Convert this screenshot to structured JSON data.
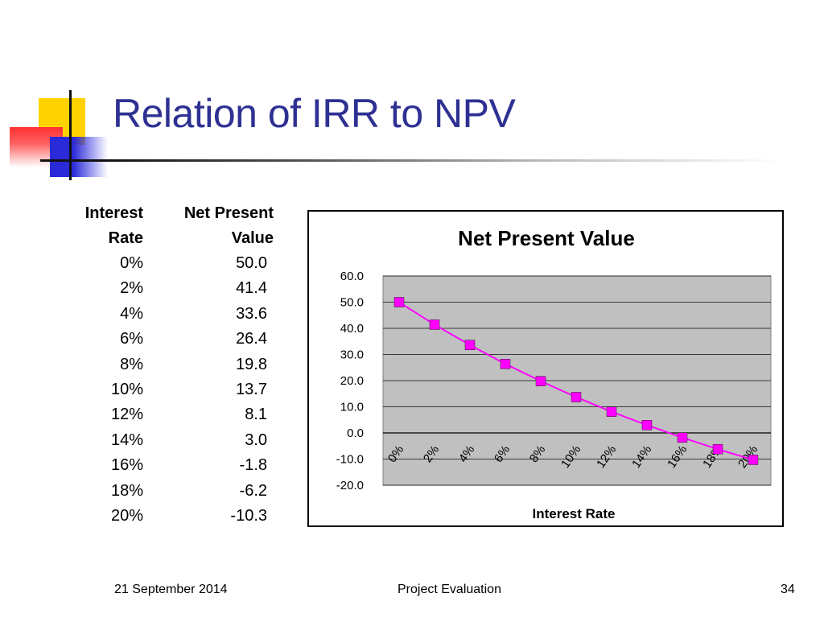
{
  "slide": {
    "title": "Relation of IRR to NPV",
    "footer_date": "21 September 2014",
    "footer_center": "Project Evaluation",
    "page_number": "34"
  },
  "table": {
    "headers": [
      {
        "line1": "Interest",
        "line2": "Rate"
      },
      {
        "line1": "Net Present",
        "line2": "Value"
      }
    ],
    "rows": [
      {
        "rate": "0%",
        "npv": "50.0"
      },
      {
        "rate": "2%",
        "npv": "41.4"
      },
      {
        "rate": "4%",
        "npv": "33.6"
      },
      {
        "rate": "6%",
        "npv": "26.4"
      },
      {
        "rate": "8%",
        "npv": "19.8"
      },
      {
        "rate": "10%",
        "npv": "13.7"
      },
      {
        "rate": "12%",
        "npv": "8.1"
      },
      {
        "rate": "14%",
        "npv": "3.0"
      },
      {
        "rate": "16%",
        "npv": "-1.8"
      },
      {
        "rate": "18%",
        "npv": "-6.2"
      },
      {
        "rate": "20%",
        "npv": "-10.3"
      }
    ]
  },
  "chart_data": {
    "type": "line",
    "title": "Net Present Value",
    "xlabel": "Interest Rate",
    "ylabel": "",
    "categories": [
      "0%",
      "2%",
      "4%",
      "6%",
      "8%",
      "10%",
      "12%",
      "14%",
      "16%",
      "18%",
      "20%"
    ],
    "series": [
      {
        "values": [
          50.0,
          41.4,
          33.6,
          26.4,
          19.8,
          13.7,
          8.1,
          3.0,
          -1.8,
          -6.2,
          -10.3
        ],
        "color": "#ff00ff"
      }
    ],
    "ylim": [
      -20,
      60
    ],
    "yticks": [
      "60.0",
      "50.0",
      "40.0",
      "30.0",
      "20.0",
      "10.0",
      "0.0",
      "-10.0",
      "-20.0"
    ],
    "grid": true,
    "legend": "none",
    "plot_background": "#c0c0c0",
    "marker": "square"
  },
  "colors": {
    "title": "#2e3192",
    "logo_yellow": "#ffd200",
    "logo_blue": "#2a2ad8",
    "logo_red": "#ff3030"
  }
}
